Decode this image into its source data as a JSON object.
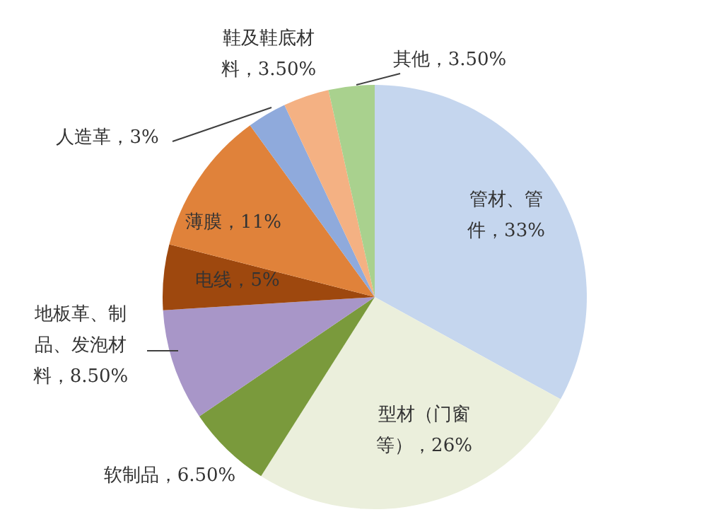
{
  "chart_data": {
    "type": "pie",
    "categories": [
      "管材、管件",
      "型材（门窗等）",
      "软制品",
      "地板革、制品、发泡材料",
      "电线",
      "薄膜",
      "人造革",
      "鞋及鞋底材料",
      "其他"
    ],
    "values": [
      33,
      26,
      6.5,
      8.5,
      5,
      11,
      3,
      3.5,
      3.5
    ],
    "value_labels": [
      "33%",
      "26%",
      "6.50%",
      "8.50%",
      "5%",
      "11%",
      "3%",
      "3.50%",
      "3.50%"
    ],
    "colors": [
      "#c5d6ee",
      "#ebefdc",
      "#7a9a3c",
      "#a896c8",
      "#9e480e",
      "#e0823a",
      "#8faadc",
      "#f4b183",
      "#a9d18e"
    ]
  }
}
